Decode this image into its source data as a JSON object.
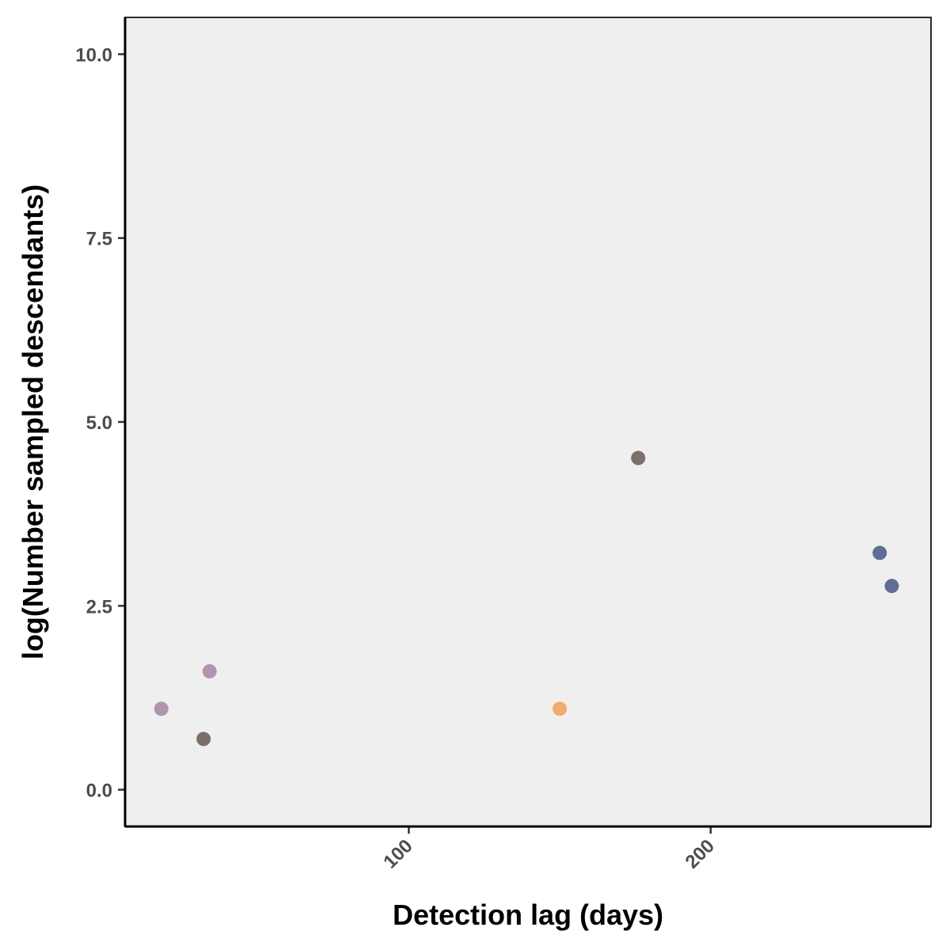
{
  "chart_data": {
    "type": "scatter",
    "xlabel": "Detection lag (days)",
    "ylabel": "log(Number sampled descendants)",
    "xlim": [
      6,
      273
    ],
    "ylim": [
      -0.5,
      10.5
    ],
    "x_ticks": [
      100,
      200
    ],
    "x_tick_labels": [
      "100",
      "200"
    ],
    "y_ticks": [
      0,
      2.5,
      5,
      7.5,
      10
    ],
    "y_tick_labels": [
      "0.0",
      "2.5",
      "5.0",
      "7.5",
      "10.0"
    ],
    "grid": false,
    "legend": "none",
    "panel_background": "#efefef",
    "points": [
      {
        "x": 18,
        "y": 1.1,
        "color": "#a88ba6"
      },
      {
        "x": 32,
        "y": 0.69,
        "color": "#6e5f5c"
      },
      {
        "x": 34,
        "y": 1.61,
        "color": "#a88ba6"
      },
      {
        "x": 150,
        "y": 1.1,
        "color": "#f0a35e"
      },
      {
        "x": 176,
        "y": 4.51,
        "color": "#6e5f5c"
      },
      {
        "x": 256,
        "y": 3.22,
        "color": "#4f5f8c"
      },
      {
        "x": 260,
        "y": 2.77,
        "color": "#4f5f8c"
      }
    ]
  }
}
